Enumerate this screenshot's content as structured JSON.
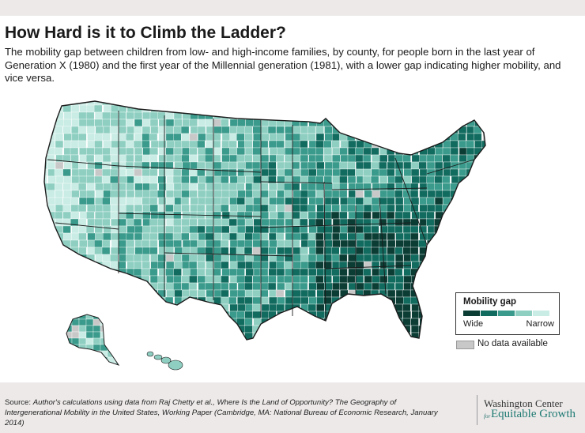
{
  "title": "How Hard is it to Climb the Ladder?",
  "subtitle": "The mobility gap between children from low- and high-income families, by county, for people born in the last year of Generation X (1980) and the first year of the Millennial generation (1981), with a lower gap indicating higher mobility, and vice versa.",
  "legend": {
    "title": "Mobility gap",
    "wide_label": "Wide",
    "narrow_label": "Narrow",
    "colors": [
      "#0b3d35",
      "#126b5f",
      "#3a9a8b",
      "#8fcfc2",
      "#c9ece4"
    ],
    "no_data_color": "#c8c8c8",
    "no_data_label": "No data available"
  },
  "source": {
    "prefix": "Source: ",
    "text": "Author's calculations using data from Raj Chetty et al., Where Is the Land of Opportunity? The Geography of Intergenerational Mobility in the United States, Working Paper (Cambridge, MA: National Bureau of Economic Research, January 2014)"
  },
  "brand": {
    "line1": "Washington Center",
    "for": "for",
    "line2": "Equitable Growth"
  }
}
